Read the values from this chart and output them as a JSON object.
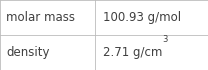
{
  "rows": [
    {
      "label": "molar mass",
      "value": "100.93 g/mol",
      "superscript": null
    },
    {
      "label": "density",
      "value": "2.71 g/cm",
      "superscript": "3"
    }
  ],
  "background_color": "#ffffff",
  "border_color": "#bbbbbb",
  "text_color": "#404040",
  "label_fontsize": 8.5,
  "value_fontsize": 8.5,
  "sup_fontsize": 6.0,
  "col_split": 0.455,
  "figsize": [
    2.08,
    0.7
  ],
  "dpi": 100
}
